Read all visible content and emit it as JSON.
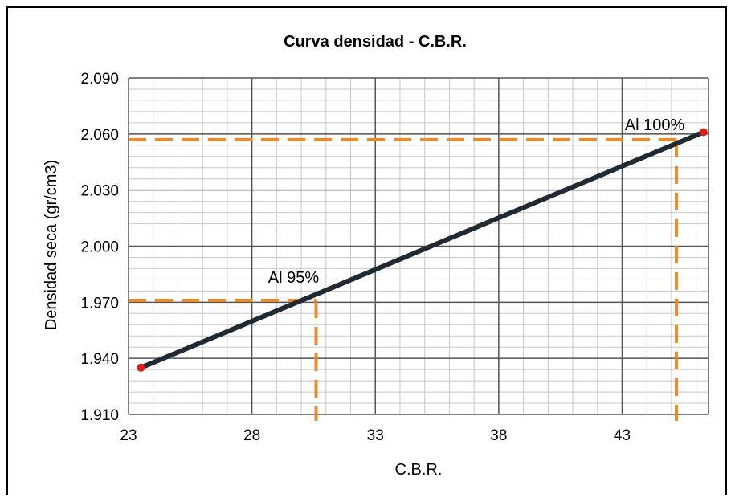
{
  "chart_data": {
    "type": "line",
    "title": "Curva densidad - C.B.R.",
    "xlabel": "C.B.R.",
    "ylabel": "Densidad seca (gr/cm3)",
    "xlim": [
      23,
      46.5
    ],
    "ylim": [
      1.91,
      2.09
    ],
    "x_ticks": [
      23,
      28,
      33,
      38,
      43
    ],
    "x_tick_labels": [
      "23",
      "28",
      "33",
      "38",
      "43"
    ],
    "y_ticks": [
      1.91,
      1.94,
      1.97,
      2.0,
      2.03,
      2.06,
      2.09
    ],
    "y_tick_labels": [
      "1.910",
      "1.940",
      "1.970",
      "2.000",
      "2.030",
      "2.060",
      "2.090"
    ],
    "grid": true,
    "series": [
      {
        "x": [
          23.5,
          46.3
        ],
        "y": [
          1.935,
          2.061
        ],
        "color": "#1f2a33"
      }
    ],
    "endpoints": [
      {
        "x": 23.5,
        "y": 1.935
      },
      {
        "x": 46.3,
        "y": 2.061
      }
    ],
    "marker_color": "#e31b1b",
    "reference_color": "#f08a24",
    "annotations": [
      {
        "text": "Al 95%",
        "x": 30.6,
        "y": 1.971
      },
      {
        "text": "Al 100%",
        "x": 45.2,
        "y": 2.057
      }
    ]
  }
}
